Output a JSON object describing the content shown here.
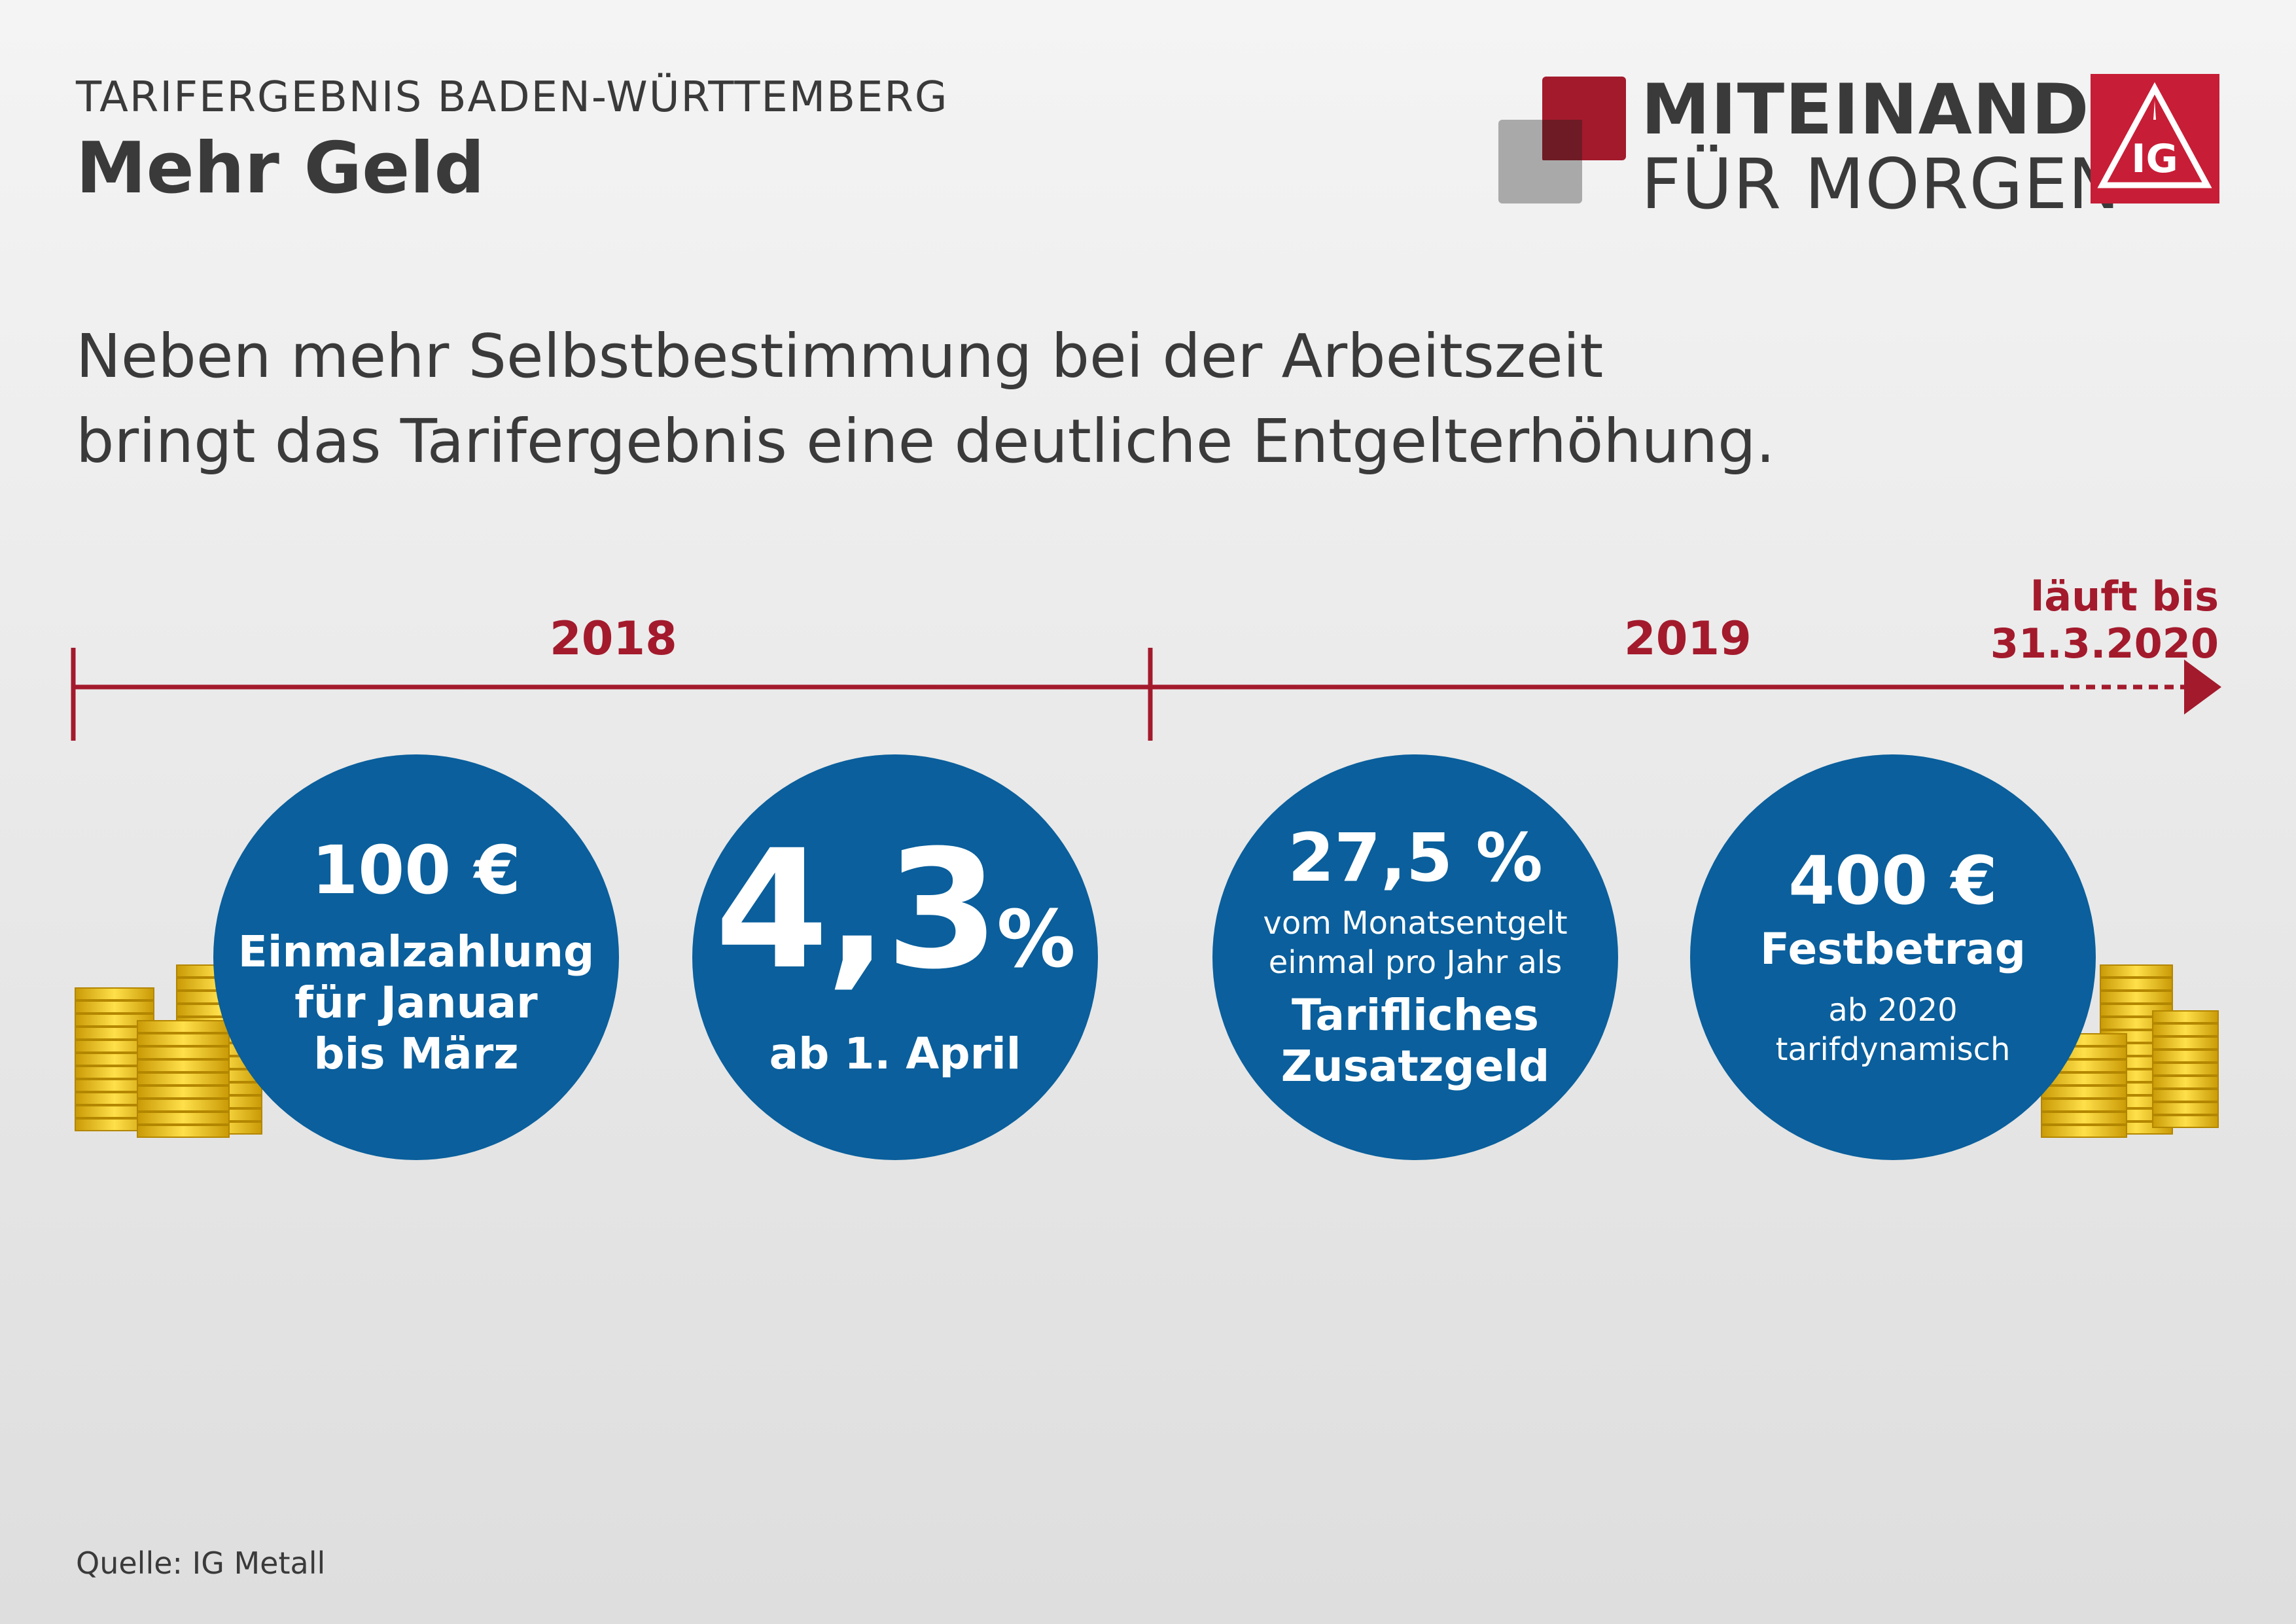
{
  "header": {
    "kicker": "TARIFERGEBNIS BADEN-WÜRTTEMBERG",
    "title": "Mehr Geld"
  },
  "logo": {
    "line1": "MITEINANDER",
    "line2": "FÜR MORGEN",
    "emblem": "IG",
    "colors": {
      "red": "#a31a2c",
      "grey": "#a9a9a9",
      "emblem_red": "#c81d36"
    }
  },
  "intro": {
    "line1": "Neben mehr Selbstbestimmung bei der Arbeitszeit",
    "line2": "bringt das Tarifergebnis eine deutliche Entgelterhöhung."
  },
  "timeline": {
    "year1": "2018",
    "year2": "2019",
    "end_line1": "läuft bis",
    "end_line2": "31.3.2020",
    "color": "#a31a2c"
  },
  "circles": [
    {
      "headline": "100 €",
      "line1": "Einmalzahlung",
      "line2": "für Januar",
      "line3": "bis März"
    },
    {
      "headline": "4,3",
      "unit": "%",
      "sub": "ab 1. April"
    },
    {
      "headline": "27,5 %",
      "small1": "vom Monatsentgelt",
      "small2": "einmal pro Jahr als",
      "line1": "Tarifliches",
      "line2": "Zusatzgeld"
    },
    {
      "headline": "400 €",
      "line1": "Festbetrag",
      "small1": "ab 2020",
      "small2": "tarifdynamisch"
    }
  ],
  "circle_color": "#0a5f9c",
  "coin_color": "#e9b90f",
  "source": "Quelle: IG Metall"
}
